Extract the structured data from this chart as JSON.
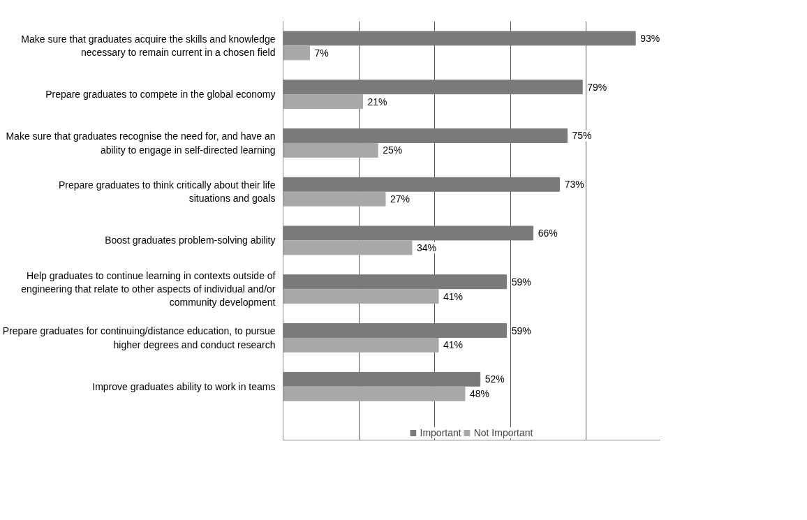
{
  "chart_data": {
    "type": "bar",
    "orientation": "horizontal",
    "categories": [
      "Make sure that graduates acquire the skills and knowledge necessary to remain current in a chosen field",
      "Prepare graduates to compete in the global economy",
      "Make sure that graduates recognise the need for, and have an ability to engage in self-directed learning",
      "Prepare graduates to think critically about their life situations and goals",
      "Boost graduates problem-solving ability",
      "Help graduates to continue learning in contexts outside of engineering that relate to other aspects of individual and/or community development",
      "Prepare graduates for continuing/distance education, to pursue higher degrees and conduct research",
      "Improve graduates ability to work in teams"
    ],
    "series": [
      {
        "name": "Important",
        "color": "#7a7a7a",
        "values": [
          93,
          79,
          75,
          73,
          66,
          59,
          59,
          52
        ],
        "value_labels": [
          "93%",
          "79%",
          "75%",
          "73%",
          "66%",
          "59%",
          "59%",
          "52%"
        ]
      },
      {
        "name": "Not Important",
        "color": "#a8a8a8",
        "values": [
          7,
          21,
          25,
          27,
          34,
          41,
          41,
          48
        ],
        "value_labels": [
          "7%",
          "21%",
          "25%",
          "27%",
          "34%",
          "41%",
          "41%",
          "48%"
        ]
      }
    ],
    "grid": "x",
    "tick_labels": "y",
    "legend": "bottom"
  }
}
